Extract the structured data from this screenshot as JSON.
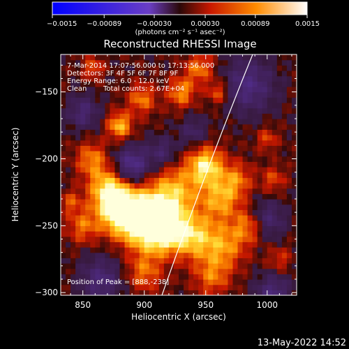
{
  "chart_data": {
    "type": "heatmap",
    "title": "Reconstructed RHESSI Image",
    "xlabel": "Heliocentric X (arcsec)",
    "ylabel": "Heliocentric Y (arcsec)",
    "xlim": [
      832,
      1024
    ],
    "ylim": [
      -302,
      -122
    ],
    "x_ticks": [
      850,
      900,
      950,
      1000
    ],
    "y_ticks": [
      -150,
      -200,
      -250,
      -300
    ],
    "colorbar": {
      "range": [
        -0.0015,
        0.0015
      ],
      "ticks": [
        -0.0015,
        -0.00089,
        -0.0003,
        0.0003,
        0.00089,
        0.0015
      ],
      "tick_labels": [
        "−0.0015",
        "−0.00089",
        "−0.00030",
        "0.00030",
        "0.00089",
        "0.0015"
      ],
      "label": "(photons cm⁻² s⁻¹ asec⁻²)"
    },
    "annotations": [
      "7-Mar-2014 17:07:56.000 to 17:13:56.000",
      "Detectors: 3F 4F 5F 6F 7F 8F 9F",
      "Energy Range: 6.0 - 12.0 keV",
      "Clean",
      "Total counts: 2.67E+04"
    ],
    "peak_label": "Position of Peak = [888,-238]",
    "peak": [
      888,
      -238
    ],
    "blobs": [
      {
        "x": 900,
        "y": -245,
        "amp": 1.0,
        "r": 15
      },
      {
        "x": 880,
        "y": -238,
        "amp": 0.95,
        "r": 12
      },
      {
        "x": 915,
        "y": -252,
        "amp": 0.9,
        "r": 12
      },
      {
        "x": 870,
        "y": -222,
        "amp": 0.7,
        "r": 11
      },
      {
        "x": 925,
        "y": -225,
        "amp": 0.65,
        "r": 14
      },
      {
        "x": 950,
        "y": -205,
        "amp": 0.85,
        "r": 10
      },
      {
        "x": 962,
        "y": -230,
        "amp": 0.6,
        "r": 11
      },
      {
        "x": 940,
        "y": -258,
        "amp": 0.7,
        "r": 12
      },
      {
        "x": 965,
        "y": -265,
        "amp": 0.55,
        "r": 12
      },
      {
        "x": 985,
        "y": -250,
        "amp": 0.5,
        "r": 9
      },
      {
        "x": 975,
        "y": -215,
        "amp": 0.45,
        "r": 9
      },
      {
        "x": 857,
        "y": -200,
        "amp": 0.5,
        "r": 9
      },
      {
        "x": 850,
        "y": -250,
        "amp": 0.45,
        "r": 9
      },
      {
        "x": 900,
        "y": -285,
        "amp": 0.45,
        "r": 10
      },
      {
        "x": 955,
        "y": -288,
        "amp": 0.45,
        "r": 10
      },
      {
        "x": 880,
        "y": -175,
        "amp": 0.7,
        "r": 7
      },
      {
        "x": 898,
        "y": -155,
        "amp": 0.5,
        "r": 8
      },
      {
        "x": 930,
        "y": -150,
        "amp": 0.55,
        "r": 8
      },
      {
        "x": 945,
        "y": -132,
        "amp": 0.5,
        "r": 8
      },
      {
        "x": 960,
        "y": -150,
        "amp": 0.45,
        "r": 6
      },
      {
        "x": 858,
        "y": -132,
        "amp": 0.4,
        "r": 6
      },
      {
        "x": 840,
        "y": -232,
        "amp": 0.35,
        "r": 6
      },
      {
        "x": 1000,
        "y": -185,
        "amp": 0.35,
        "r": 6
      },
      {
        "x": 1010,
        "y": -275,
        "amp": 0.3,
        "r": 7
      },
      {
        "x": 1005,
        "y": -215,
        "amp": 0.35,
        "r": 7
      },
      {
        "x": 890,
        "y": -205,
        "amp": -0.7,
        "r": 10
      },
      {
        "x": 985,
        "y": -145,
        "amp": -0.55,
        "r": 14
      },
      {
        "x": 1000,
        "y": -245,
        "amp": -0.45,
        "r": 10
      },
      {
        "x": 850,
        "y": -165,
        "amp": -0.45,
        "r": 9
      },
      {
        "x": 865,
        "y": -290,
        "amp": -0.5,
        "r": 12
      },
      {
        "x": 1005,
        "y": -300,
        "amp": -0.5,
        "r": 10
      },
      {
        "x": 940,
        "y": -180,
        "amp": -0.35,
        "r": 8
      },
      {
        "x": 915,
        "y": -195,
        "amp": -0.4,
        "r": 8
      }
    ]
  },
  "footer": {
    "timestamp": "13-May-2022 14:52"
  }
}
